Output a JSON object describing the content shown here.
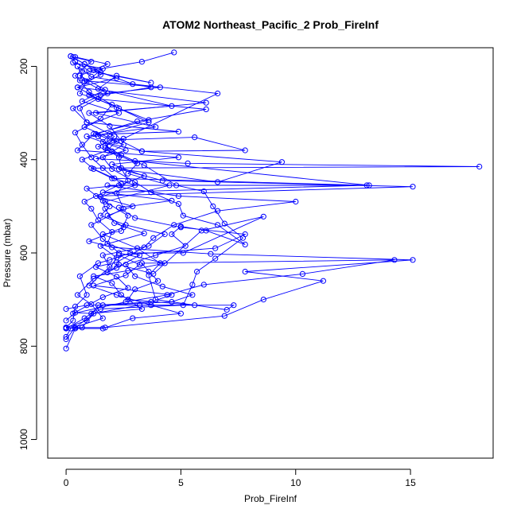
{
  "chart_data": {
    "type": "line",
    "title": "ATOM2 Northeast_Pacific_2 Prob_FireInf",
    "xlabel": "Prob_FireInf",
    "ylabel": "Pressure (mbar)",
    "xlim": [
      -0.8,
      18.6
    ],
    "ylim": [
      1040,
      160
    ],
    "y_reversed": true,
    "xticks": [
      0,
      5,
      10,
      15
    ],
    "yticks": [
      200,
      400,
      600,
      800,
      1000
    ],
    "grid": false,
    "legend": "none",
    "colors": {
      "series": "#0000ff",
      "axes": "#000000",
      "background": "#ffffff"
    },
    "marker": "open-circle",
    "series": [
      {
        "points": [
          [
            0.0,
            805
          ],
          [
            0.4,
            762
          ],
          [
            1.6,
            762
          ],
          [
            2.9,
            740
          ],
          [
            5.0,
            730
          ],
          [
            3.7,
            712
          ],
          [
            2.2,
            690
          ],
          [
            1.0,
            670
          ],
          [
            1.9,
            630
          ],
          [
            1.6,
            605
          ],
          [
            3.6,
            585
          ],
          [
            4.3,
            560
          ],
          [
            2.6,
            540
          ],
          [
            1.5,
            520
          ],
          [
            1.9,
            500
          ],
          [
            1.5,
            480
          ],
          [
            3.0,
            455
          ],
          [
            2.1,
            440
          ],
          [
            1.2,
            420
          ],
          [
            0.7,
            400
          ],
          [
            1.8,
            380
          ],
          [
            2.2,
            360
          ],
          [
            0.8,
            330
          ],
          [
            2.3,
            300
          ],
          [
            0.7,
            275
          ],
          [
            1.7,
            250
          ],
          [
            0.6,
            220
          ],
          [
            1.8,
            195
          ],
          [
            0.4,
            180
          ]
        ]
      },
      {
        "points": [
          [
            0.0,
            760
          ],
          [
            0.9,
            745
          ],
          [
            1.4,
            712
          ],
          [
            3.7,
            705
          ],
          [
            4.6,
            690
          ],
          [
            1.2,
            670
          ],
          [
            2.6,
            648
          ],
          [
            3.2,
            625
          ],
          [
            2.3,
            605
          ],
          [
            6.5,
            590
          ],
          [
            7.8,
            560
          ],
          [
            5.0,
            545
          ],
          [
            3.0,
            525
          ],
          [
            2.3,
            503
          ],
          [
            4.6,
            488
          ],
          [
            1.6,
            470
          ],
          [
            13.1,
            455
          ],
          [
            2.0,
            440
          ],
          [
            1.1,
            418
          ],
          [
            18.0,
            415
          ],
          [
            5.3,
            408
          ],
          [
            1.3,
            398
          ],
          [
            2.6,
            380
          ],
          [
            0.9,
            350
          ],
          [
            3.9,
            330
          ],
          [
            1.3,
            300
          ],
          [
            6.1,
            278
          ],
          [
            0.5,
            245
          ],
          [
            1.5,
            218
          ],
          [
            0.8,
            195
          ],
          [
            0.3,
            180
          ]
        ]
      },
      {
        "points": [
          [
            0.0,
            760
          ],
          [
            1.7,
            760
          ],
          [
            6.9,
            735
          ],
          [
            8.6,
            700
          ],
          [
            11.2,
            660
          ],
          [
            7.8,
            640
          ],
          [
            15.1,
            615
          ],
          [
            6.3,
            602
          ],
          [
            2.0,
            588
          ],
          [
            1.0,
            575
          ],
          [
            2.5,
            545
          ],
          [
            1.8,
            520
          ],
          [
            2.9,
            500
          ],
          [
            1.3,
            478
          ],
          [
            15.1,
            458
          ],
          [
            4.2,
            445
          ],
          [
            2.3,
            420
          ],
          [
            6.6,
            448
          ],
          [
            9.4,
            405
          ],
          [
            3.3,
            382
          ],
          [
            1.6,
            362
          ],
          [
            1.9,
            345
          ],
          [
            4.9,
            340
          ],
          [
            0.9,
            320
          ],
          [
            0.6,
            290
          ],
          [
            1.8,
            258
          ],
          [
            0.8,
            232
          ],
          [
            0.5,
            200
          ]
        ]
      },
      {
        "points": [
          [
            0.0,
            762
          ],
          [
            0.7,
            760
          ],
          [
            1.2,
            730
          ],
          [
            3.2,
            712
          ],
          [
            5.6,
            712
          ],
          [
            2.7,
            700
          ],
          [
            3.0,
            678
          ],
          [
            4.0,
            660
          ],
          [
            3.6,
            640
          ],
          [
            3.3,
            622
          ],
          [
            14.3,
            615
          ],
          [
            10.3,
            645
          ],
          [
            6.0,
            668
          ],
          [
            4.4,
            690
          ],
          [
            2.6,
            705
          ],
          [
            0.3,
            730
          ],
          [
            1.6,
            695
          ],
          [
            2.7,
            675
          ],
          [
            2.2,
            651
          ],
          [
            1.3,
            630
          ],
          [
            2.2,
            620
          ],
          [
            3.4,
            588
          ],
          [
            3.8,
            568
          ],
          [
            4.7,
            540
          ],
          [
            6.6,
            510
          ],
          [
            10.0,
            490
          ],
          [
            4.9,
            478
          ],
          [
            1.8,
            455
          ],
          [
            13.2,
            455
          ],
          [
            3.0,
            403
          ],
          [
            2.0,
            382
          ],
          [
            1.4,
            350
          ],
          [
            3.6,
            320
          ],
          [
            2.3,
            290
          ],
          [
            1.0,
            255
          ],
          [
            0.4,
            220
          ],
          [
            1.1,
            190
          ],
          [
            0.2,
            178
          ]
        ]
      },
      {
        "points": [
          [
            0.0,
            760
          ],
          [
            0.3,
            745
          ],
          [
            0.4,
            715
          ],
          [
            0.9,
            690
          ],
          [
            0.6,
            650
          ],
          [
            1.4,
            622
          ],
          [
            1.9,
            615
          ],
          [
            2.8,
            600
          ],
          [
            5.1,
            600
          ],
          [
            8.6,
            522
          ],
          [
            5.9,
            552
          ],
          [
            3.8,
            645
          ],
          [
            2.3,
            625
          ],
          [
            1.8,
            642
          ],
          [
            2.2,
            610
          ],
          [
            1.5,
            585
          ],
          [
            3.4,
            558
          ],
          [
            2.1,
            536
          ],
          [
            1.7,
            505
          ],
          [
            1.6,
            488
          ],
          [
            0.9,
            462
          ],
          [
            2.3,
            455
          ],
          [
            3.4,
            435
          ],
          [
            2.0,
            410
          ],
          [
            4.9,
            395
          ],
          [
            0.5,
            380
          ],
          [
            1.2,
            345
          ],
          [
            3.6,
            315
          ],
          [
            2.2,
            288
          ],
          [
            1.0,
            262
          ],
          [
            4.1,
            245
          ],
          [
            0.6,
            230
          ],
          [
            0.7,
            210
          ]
        ]
      },
      {
        "points": [
          [
            0.0,
            720
          ],
          [
            0.9,
            712
          ],
          [
            7.3,
            712
          ],
          [
            7.0,
            722
          ],
          [
            3.9,
            700
          ],
          [
            3.6,
            648
          ],
          [
            4.1,
            622
          ],
          [
            3.1,
            590
          ],
          [
            1.6,
            560
          ],
          [
            2.4,
            553
          ],
          [
            2.7,
            520
          ],
          [
            1.7,
            490
          ],
          [
            4.5,
            455
          ],
          [
            2.7,
            430
          ],
          [
            3.1,
            408
          ],
          [
            1.4,
            372
          ],
          [
            1.9,
            358
          ],
          [
            5.6,
            352
          ],
          [
            7.8,
            380
          ],
          [
            3.3,
            382
          ],
          [
            2.4,
            360
          ],
          [
            1.9,
            328
          ],
          [
            1.0,
            300
          ],
          [
            4.6,
            285
          ],
          [
            1.4,
            248
          ],
          [
            2.2,
            220
          ],
          [
            3.7,
            235
          ],
          [
            1.0,
            210
          ],
          [
            0.4,
            190
          ]
        ]
      },
      {
        "points": [
          [
            0.0,
            745
          ],
          [
            0.4,
            728
          ],
          [
            1.1,
            730
          ],
          [
            3.3,
            720
          ],
          [
            2.4,
            690
          ],
          [
            2.0,
            665
          ],
          [
            1.2,
            650
          ],
          [
            2.7,
            638
          ],
          [
            4.3,
            622
          ],
          [
            2.3,
            600
          ],
          [
            1.6,
            570
          ],
          [
            1.1,
            540
          ],
          [
            2.5,
            505
          ],
          [
            2.2,
            472
          ],
          [
            2.7,
            445
          ],
          [
            2.4,
            418
          ],
          [
            2.3,
            395
          ],
          [
            1.7,
            375
          ],
          [
            2.1,
            350
          ],
          [
            0.9,
            320
          ],
          [
            0.3,
            290
          ],
          [
            1.5,
            262
          ],
          [
            3.7,
            245
          ],
          [
            1.1,
            222
          ],
          [
            0.5,
            200
          ]
        ]
      },
      {
        "points": [
          [
            0.0,
            780
          ],
          [
            0.2,
            762
          ],
          [
            1.6,
            740
          ],
          [
            1.1,
            710
          ],
          [
            0.5,
            690
          ],
          [
            1.2,
            655
          ],
          [
            2.2,
            632
          ],
          [
            3.2,
            605
          ],
          [
            1.8,
            580
          ],
          [
            2.0,
            555
          ],
          [
            1.4,
            530
          ],
          [
            1.1,
            505
          ],
          [
            0.8,
            490
          ],
          [
            2.4,
            452
          ],
          [
            1.6,
            418
          ],
          [
            1.1,
            395
          ],
          [
            0.7,
            368
          ],
          [
            0.4,
            342
          ],
          [
            1.5,
            312
          ],
          [
            2.0,
            282
          ],
          [
            0.6,
            258
          ],
          [
            0.9,
            232
          ],
          [
            1.6,
            205
          ],
          [
            0.3,
            192
          ]
        ]
      },
      {
        "points": [
          [
            0.0,
            762
          ],
          [
            0.8,
            740
          ],
          [
            1.6,
            712
          ],
          [
            4.6,
            705
          ],
          [
            5.5,
            690
          ],
          [
            4.2,
            672
          ],
          [
            3.0,
            650
          ],
          [
            2.6,
            625
          ],
          [
            3.9,
            605
          ],
          [
            5.2,
            585
          ],
          [
            4.6,
            560
          ],
          [
            5.0,
            543
          ],
          [
            6.1,
            552
          ],
          [
            7.8,
            582
          ],
          [
            6.6,
            540
          ],
          [
            5.1,
            520
          ],
          [
            4.9,
            495
          ],
          [
            3.7,
            470
          ],
          [
            3.0,
            448
          ],
          [
            2.0,
            420
          ],
          [
            1.6,
            395
          ],
          [
            2.5,
            368
          ],
          [
            1.3,
            345
          ],
          [
            3.1,
            318
          ],
          [
            6.1,
            292
          ],
          [
            1.4,
            270
          ],
          [
            0.5,
            245
          ],
          [
            2.2,
            225
          ],
          [
            1.2,
            208
          ],
          [
            3.3,
            190
          ],
          [
            4.7,
            170
          ]
        ]
      },
      {
        "points": [
          [
            0.0,
            785
          ],
          [
            0.4,
            760
          ],
          [
            1.5,
            720
          ],
          [
            5.1,
            712
          ],
          [
            5.5,
            668
          ],
          [
            5.7,
            640
          ],
          [
            6.5,
            612
          ],
          [
            7.7,
            568
          ],
          [
            6.9,
            537
          ],
          [
            6.4,
            500
          ],
          [
            6.0,
            468
          ],
          [
            4.8,
            455
          ],
          [
            3.4,
            412
          ],
          [
            2.4,
            390
          ],
          [
            1.7,
            370
          ],
          [
            2.5,
            355
          ],
          [
            6.6,
            258
          ],
          [
            2.9,
            238
          ],
          [
            1.5,
            212
          ],
          [
            0.8,
            195
          ],
          [
            0.2,
            178
          ]
        ]
      }
    ]
  }
}
